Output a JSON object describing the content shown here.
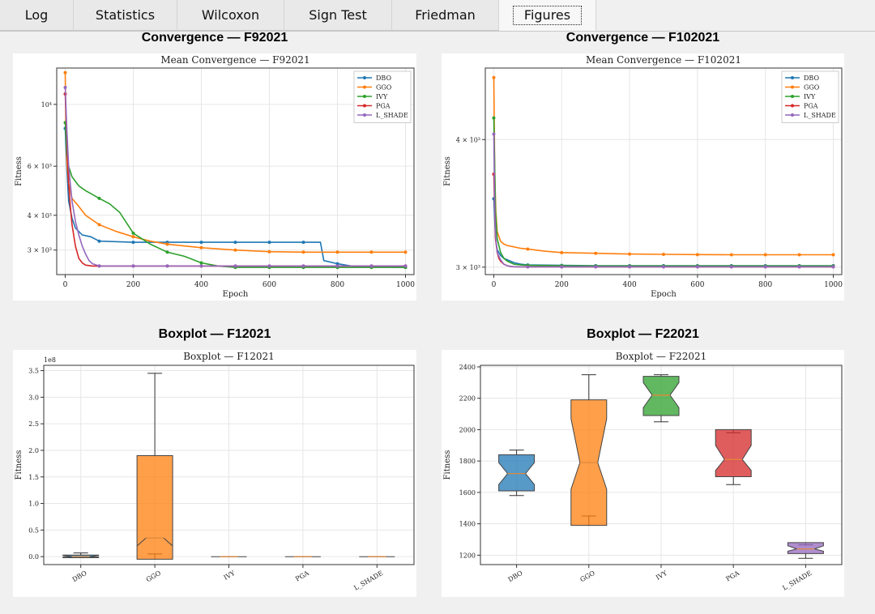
{
  "tabs": [
    {
      "label": "Log",
      "active": false
    },
    {
      "label": "Statistics",
      "active": false
    },
    {
      "label": "Wilcoxon",
      "active": false
    },
    {
      "label": "Sign Test",
      "active": false
    },
    {
      "label": "Friedman",
      "active": false
    },
    {
      "label": "Figures",
      "active": true
    }
  ],
  "panels": {
    "conv1_title": "Convergence — F92021",
    "conv2_title": "Convergence — F102021",
    "box1_title": "Boxplot — F12021",
    "box2_title": "Boxplot — F22021"
  },
  "colors": {
    "DBO": "#1f77b4",
    "GGO": "#ff7f0e",
    "IVY": "#2ca02c",
    "PGA": "#d62728",
    "L_SHADE": "#9467bd"
  },
  "chart_data": [
    {
      "type": "line",
      "title": "Mean Convergence — F92021",
      "xlabel": "Epoch",
      "ylabel": "Fitness",
      "yscale": "log",
      "xlim": [
        -25,
        1025
      ],
      "ylim": [
        2450,
        13500
      ],
      "xticks": [
        0,
        200,
        400,
        600,
        800,
        1000
      ],
      "yticks": [
        {
          "v": 3000,
          "label": "3 × 10³"
        },
        {
          "v": 4000,
          "label": "4 × 10³"
        },
        {
          "v": 6000,
          "label": "6 × 10³"
        },
        {
          "v": 10000,
          "label": "10⁴"
        }
      ],
      "legend": "top-right",
      "series": [
        {
          "name": "DBO",
          "x": [
            0,
            5,
            10,
            20,
            30,
            50,
            75,
            100,
            200,
            300,
            400,
            500,
            600,
            700,
            750,
            760,
            800,
            850,
            900,
            1000
          ],
          "y": [
            8200,
            5800,
            4500,
            3900,
            3600,
            3400,
            3350,
            3230,
            3200,
            3200,
            3200,
            3200,
            3200,
            3200,
            3200,
            2750,
            2680,
            2620,
            2610,
            2600
          ]
        },
        {
          "name": "GGO",
          "x": [
            0,
            2,
            5,
            10,
            20,
            40,
            60,
            100,
            150,
            200,
            250,
            300,
            400,
            500,
            600,
            700,
            800,
            900,
            1000
          ],
          "y": [
            13000,
            8500,
            6200,
            5200,
            4600,
            4300,
            4000,
            3700,
            3500,
            3350,
            3230,
            3150,
            3060,
            3000,
            2960,
            2950,
            2950,
            2950,
            2950
          ]
        },
        {
          "name": "IVY",
          "x": [
            0,
            5,
            10,
            20,
            40,
            60,
            80,
            100,
            130,
            160,
            200,
            250,
            300,
            350,
            400,
            450,
            500,
            1000
          ],
          "y": [
            8600,
            6700,
            6000,
            5500,
            5100,
            4900,
            4750,
            4600,
            4400,
            4100,
            3450,
            3150,
            2950,
            2850,
            2700,
            2630,
            2600,
            2600
          ]
        },
        {
          "name": "PGA",
          "x": [
            0,
            5,
            10,
            15,
            20,
            30,
            40,
            50,
            60,
            80,
            100,
            1000
          ],
          "y": [
            10900,
            7500,
            5200,
            4300,
            3700,
            3100,
            2800,
            2700,
            2650,
            2630,
            2630,
            2630
          ]
        },
        {
          "name": "L_SHADE",
          "x": [
            0,
            5,
            10,
            20,
            30,
            40,
            50,
            60,
            70,
            80,
            100,
            1000
          ],
          "y": [
            11500,
            8000,
            6000,
            4500,
            3800,
            3400,
            3100,
            2900,
            2750,
            2680,
            2630,
            2630
          ]
        }
      ]
    },
    {
      "type": "line",
      "title": "Mean Convergence — F102021",
      "xlabel": "Epoch",
      "ylabel": "Fitness",
      "yscale": "log",
      "xlim": [
        -25,
        1025
      ],
      "ylim": [
        2950,
        4700
      ],
      "xticks": [
        0,
        200,
        400,
        600,
        800,
        1000
      ],
      "yticks": [
        {
          "v": 3000,
          "label": "3 × 10³"
        },
        {
          "v": 4000,
          "label": "4 × 10³"
        }
      ],
      "legend": "top-right",
      "series": [
        {
          "name": "DBO",
          "x": [
            0,
            5,
            10,
            20,
            30,
            40,
            50,
            60,
            80,
            100,
            200,
            300,
            400,
            500,
            600,
            700,
            800,
            900,
            1000
          ],
          "y": [
            3500,
            3200,
            3120,
            3080,
            3060,
            3050,
            3040,
            3030,
            3020,
            3015,
            3012,
            3010,
            3010,
            3010,
            3010,
            3010,
            3010,
            3010,
            3010
          ]
        },
        {
          "name": "GGO",
          "x": [
            0,
            3,
            6,
            10,
            20,
            30,
            40,
            60,
            80,
            100,
            150,
            200,
            300,
            400,
            500,
            600,
            700,
            800,
            900,
            1000
          ],
          "y": [
            4600,
            3700,
            3400,
            3250,
            3180,
            3160,
            3150,
            3140,
            3130,
            3125,
            3110,
            3100,
            3095,
            3090,
            3088,
            3086,
            3085,
            3085,
            3085,
            3085
          ]
        },
        {
          "name": "IVY",
          "x": [
            0,
            5,
            10,
            20,
            30,
            40,
            50,
            60,
            80,
            100,
            200,
            300,
            400,
            500,
            600,
            700,
            800,
            900,
            1000
          ],
          "y": [
            4200,
            3400,
            3200,
            3100,
            3060,
            3040,
            3030,
            3020,
            3015,
            3012,
            3010,
            3008,
            3008,
            3008,
            3008,
            3008,
            3008,
            3008,
            3008
          ]
        },
        {
          "name": "PGA",
          "x": [
            0,
            5,
            10,
            15,
            20,
            30,
            40,
            50,
            60,
            80,
            100,
            1000
          ],
          "y": [
            3700,
            3200,
            3100,
            3060,
            3040,
            3020,
            3010,
            3005,
            3003,
            3002,
            3002,
            3002
          ]
        },
        {
          "name": "L_SHADE",
          "x": [
            0,
            3,
            6,
            10,
            20,
            30,
            40,
            50,
            60,
            80,
            100,
            1000
          ],
          "y": [
            4050,
            3400,
            3200,
            3100,
            3050,
            3020,
            3010,
            3005,
            3003,
            3002,
            3002,
            3002
          ]
        }
      ]
    },
    {
      "type": "box",
      "title": "Boxplot — F12021",
      "ylabel": "Fitness",
      "offset_label": "1e8",
      "ylim": [
        -0.15,
        3.6
      ],
      "yticks": [
        0.0,
        0.5,
        1.0,
        1.5,
        2.0,
        2.5,
        3.0,
        3.5
      ],
      "yticklabels": [
        "0.0",
        "0.5",
        "1.0",
        "1.5",
        "2.0",
        "2.5",
        "3.0",
        "3.5"
      ],
      "categories": [
        "DBO",
        "GGO",
        "IVY",
        "PGA",
        "L_SHADE"
      ],
      "boxes": [
        {
          "name": "DBO",
          "q1": -0.02,
          "med": 0.0,
          "q3": 0.03,
          "ci_lo": -0.01,
          "ci_hi": 0.02,
          "wlo": -0.02,
          "whi": 0.07
        },
        {
          "name": "GGO",
          "q1": -0.05,
          "med": 0.35,
          "q3": 1.9,
          "ci_lo": 0.2,
          "ci_hi": 0.2,
          "wlo": 0.05,
          "whi": 3.45
        },
        {
          "name": "IVY",
          "q1": 0.0,
          "med": 0.0,
          "q3": 0.0,
          "ci_lo": 0.0,
          "ci_hi": 0.0,
          "wlo": 0.0,
          "whi": 0.0
        },
        {
          "name": "PGA",
          "q1": 0.0,
          "med": 0.0,
          "q3": 0.0,
          "ci_lo": 0.0,
          "ci_hi": 0.0,
          "wlo": 0.0,
          "whi": 0.0
        },
        {
          "name": "L_SHADE",
          "q1": 0.0,
          "med": 0.0,
          "q3": 0.0,
          "ci_lo": 0.0,
          "ci_hi": 0.0,
          "wlo": 0.0,
          "whi": 0.0
        }
      ]
    },
    {
      "type": "box",
      "title": "Boxplot — F22021",
      "ylabel": "Fitness",
      "ylim": [
        1140,
        2410
      ],
      "yticks": [
        1200,
        1400,
        1600,
        1800,
        2000,
        2200,
        2400
      ],
      "yticklabels": [
        "1200",
        "1400",
        "1600",
        "1800",
        "2000",
        "2200",
        "2400"
      ],
      "categories": [
        "DBO",
        "GGO",
        "IVY",
        "PGA",
        "L_SHADE"
      ],
      "boxes": [
        {
          "name": "DBO",
          "q1": 1610,
          "med": 1720,
          "q3": 1840,
          "ci_lo": 1650,
          "ci_hi": 1790,
          "wlo": 1580,
          "whi": 1870
        },
        {
          "name": "GGO",
          "q1": 1390,
          "med": 1790,
          "q3": 2190,
          "ci_lo": 1620,
          "ci_hi": 2070,
          "wlo": 1450,
          "whi": 2350
        },
        {
          "name": "IVY",
          "q1": 2090,
          "med": 2220,
          "q3": 2340,
          "ci_lo": 2140,
          "ci_hi": 2300,
          "wlo": 2050,
          "whi": 2350
        },
        {
          "name": "PGA",
          "q1": 1700,
          "med": 1810,
          "q3": 2000,
          "ci_lo": 1740,
          "ci_hi": 1900,
          "wlo": 1650,
          "whi": 1980
        },
        {
          "name": "L_SHADE",
          "q1": 1210,
          "med": 1240,
          "q3": 1280,
          "ci_lo": 1225,
          "ci_hi": 1260,
          "wlo": 1180,
          "whi": 1265
        }
      ]
    }
  ]
}
